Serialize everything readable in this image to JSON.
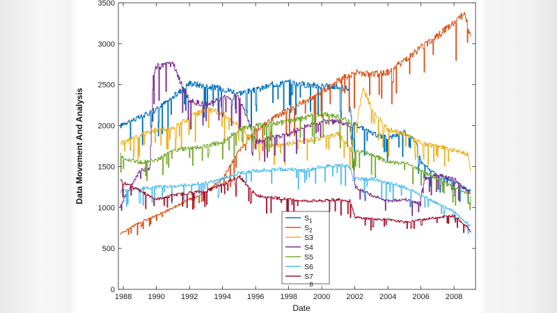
{
  "chart_data": {
    "type": "line",
    "title": "",
    "xlabel": "Date",
    "ylabel": "Data Movement And Analysis",
    "xlim": [
      1987.7,
      2009.3
    ],
    "ylim": [
      0,
      3500
    ],
    "x_ticks": [
      "1988",
      "1990",
      "1992",
      "1994",
      "1996",
      "1998",
      "2000",
      "2002",
      "2004",
      "2006",
      "2008"
    ],
    "y_ticks": [
      "0",
      "500",
      "1000",
      "1500",
      "2000",
      "2500",
      "3000",
      "3500"
    ],
    "legend_position": "bottom-center",
    "footnote": "8",
    "series": [
      {
        "name": "S1",
        "base": "S",
        "sub": "1",
        "color": "#0072BD",
        "x": [
          1987.8,
          1988,
          1989,
          1990,
          1991,
          1992,
          1993,
          1994,
          1995,
          1996,
          1997,
          1998,
          1999,
          2000,
          2001,
          2001.6,
          2001.8,
          2002,
          2003,
          2004,
          2005,
          2005.7,
          2006,
          2007,
          2008,
          2008.5,
          2009
        ],
        "y": [
          1990,
          2030,
          2100,
          2200,
          2350,
          2520,
          2480,
          2450,
          2400,
          2430,
          2500,
          2530,
          2500,
          2480,
          2470,
          2450,
          2000,
          2020,
          1900,
          1850,
          1920,
          1800,
          1550,
          1380,
          1320,
          1250,
          1200
        ]
      },
      {
        "name": "S2",
        "base": "S",
        "sub": "2",
        "color": "#D95319",
        "x": [
          1987.8,
          1988,
          1989,
          1990,
          1991,
          1992,
          1993,
          1994,
          1995,
          1996,
          1997,
          1998,
          1999,
          2000,
          2001,
          2002,
          2003,
          2004,
          2005,
          2006,
          2007,
          2008,
          2008.6,
          2009
        ],
        "y": [
          680,
          700,
          820,
          900,
          1000,
          1100,
          1200,
          1350,
          1700,
          1950,
          2080,
          2200,
          2300,
          2420,
          2550,
          2650,
          2620,
          2650,
          2800,
          2950,
          3100,
          3250,
          3380,
          3050
        ]
      },
      {
        "name": "S3",
        "base": "S",
        "sub": "",
        "color": "#EDB120",
        "x": [
          1987.8,
          1988,
          1989,
          1990,
          1991,
          1992,
          1993,
          1994,
          1995,
          1996,
          1997,
          1998,
          1999,
          2000,
          2001,
          2001.8,
          2002,
          2002.5,
          2003,
          2004,
          2005,
          2006,
          2007,
          2008,
          2008.8,
          2009
        ],
        "y": [
          1780,
          1800,
          1880,
          1950,
          1960,
          2100,
          2200,
          2150,
          2000,
          1800,
          1750,
          1780,
          1820,
          1850,
          1900,
          1700,
          2000,
          2450,
          2200,
          1950,
          1900,
          1780,
          1750,
          1700,
          1650,
          1450
        ]
      },
      {
        "name": "S4",
        "base": "S",
        "sub": "",
        "color": "#7E2F8E",
        "x": [
          1987.8,
          1988,
          1989,
          1989.6,
          1989.8,
          1990,
          1991,
          1991.5,
          1992,
          1993,
          1994,
          1995,
          1996,
          1997,
          1998,
          1999,
          2000,
          2001,
          2001.7,
          2002,
          2003,
          2004,
          2005,
          2005.9,
          2006.2,
          2007,
          2008,
          2009
        ],
        "y": [
          1010,
          1100,
          1450,
          1480,
          2650,
          2720,
          2750,
          2500,
          2300,
          2250,
          2350,
          2350,
          1800,
          1850,
          1900,
          2000,
          2050,
          2050,
          2000,
          1250,
          1150,
          1080,
          1100,
          1050,
          1350,
          1400,
          1350,
          1150
        ]
      },
      {
        "name": "S5",
        "base": "S",
        "sub": "",
        "color": "#77AC30",
        "x": [
          1987.8,
          1988,
          1989,
          1990,
          1991,
          1992,
          1993,
          1994,
          1995,
          1996,
          1997,
          1998,
          1999,
          2000,
          2001,
          2001.7,
          2001.9,
          2002,
          2003,
          2004,
          2005,
          2006,
          2007,
          2008,
          2009
        ],
        "y": [
          1650,
          1600,
          1550,
          1580,
          1700,
          1720,
          1750,
          1800,
          1950,
          2000,
          2020,
          2050,
          2100,
          2150,
          2100,
          2050,
          1550,
          1700,
          1650,
          1550,
          1550,
          1450,
          1350,
          1250,
          1150
        ]
      },
      {
        "name": "S6",
        "base": "S",
        "sub": "",
        "color": "#4DBEEE",
        "x": [
          1987.8,
          1988,
          1989,
          1990,
          1991,
          1992,
          1993,
          1994,
          1995,
          1996,
          1997,
          1998,
          1999,
          2000,
          2001,
          2001.7,
          2001.9,
          2002,
          2003,
          2004,
          2005,
          2006,
          2007,
          2008,
          2008.5,
          2009
        ],
        "y": [
          1200,
          1210,
          1230,
          1250,
          1260,
          1280,
          1300,
          1350,
          1420,
          1450,
          1460,
          1470,
          1450,
          1500,
          1520,
          1500,
          1300,
          1350,
          1350,
          1300,
          1250,
          1150,
          1050,
          950,
          850,
          780
        ]
      },
      {
        "name": "S7",
        "base": "S",
        "sub": "",
        "color": "#A2142F",
        "x": [
          1987.8,
          1988,
          1989,
          1990,
          1991,
          1992,
          1993,
          1994,
          1995,
          1996,
          1997,
          1998,
          1999,
          2000,
          2001,
          2001.7,
          2002,
          2003,
          2004,
          2005,
          2006,
          2007,
          2008,
          2008.8,
          2009
        ],
        "y": [
          1350,
          1300,
          1200,
          1100,
          1150,
          1180,
          1200,
          1280,
          1380,
          1150,
          1120,
          1100,
          1080,
          1080,
          1100,
          1080,
          880,
          860,
          850,
          820,
          850,
          880,
          900,
          760,
          700
        ]
      }
    ]
  }
}
